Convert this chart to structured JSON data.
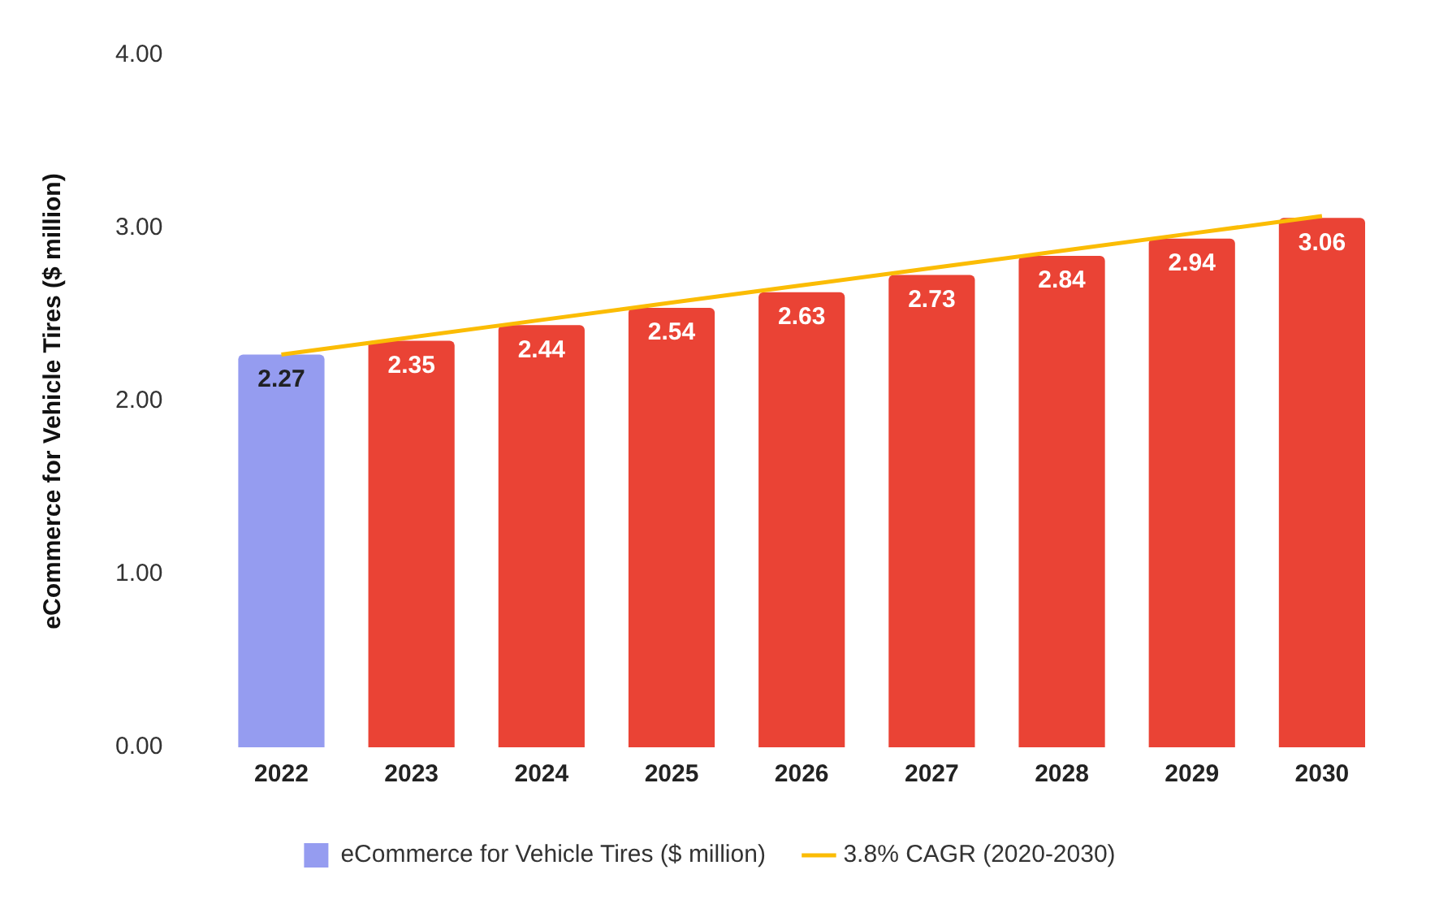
{
  "chart_data": {
    "type": "bar",
    "ylabel": "eCommerce for Vehicle Tires ($ million)",
    "categories": [
      "2022",
      "2023",
      "2024",
      "2025",
      "2026",
      "2027",
      "2028",
      "2029",
      "2030"
    ],
    "series": [
      {
        "name": "eCommerce for Vehicle Tires ($ million)",
        "colors": [
          "#959cf0",
          "#ea4335",
          "#ea4335",
          "#ea4335",
          "#ea4335",
          "#ea4335",
          "#ea4335",
          "#ea4335",
          "#ea4335"
        ],
        "values": [
          2.27,
          2.35,
          2.44,
          2.54,
          2.63,
          2.73,
          2.84,
          2.94,
          3.06
        ],
        "value_labels": [
          "2.27",
          "2.35",
          "2.44",
          "2.54",
          "2.63",
          "2.73",
          "2.84",
          "2.94",
          "3.06"
        ]
      },
      {
        "name": "3.8% CAGR (2020-2030)",
        "type": "line",
        "color": "#fbbc04",
        "values": [
          2.27,
          2.37,
          2.47,
          2.57,
          2.67,
          2.77,
          2.87,
          2.97,
          3.07
        ]
      }
    ],
    "ylim": [
      0,
      4
    ],
    "yticks": [
      {
        "value": 0,
        "label": "0.00"
      },
      {
        "value": 1,
        "label": "1.00"
      },
      {
        "value": 2,
        "label": "2.00"
      },
      {
        "value": 3,
        "label": "3.00"
      },
      {
        "value": 4,
        "label": "4.00"
      }
    ],
    "grid": false,
    "legend": "bottom",
    "marker": "none"
  }
}
